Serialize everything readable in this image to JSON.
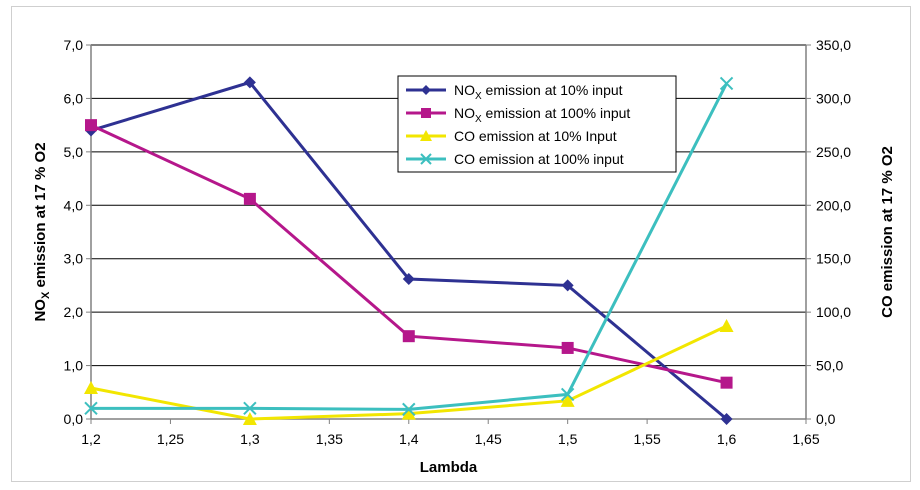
{
  "chart_data": {
    "type": "line",
    "xlabel": "Lambda",
    "ylabel_left": {
      "main": "NO",
      "sub": "X",
      "rest": " emission at 17 % O2"
    },
    "ylabel_right": "CO emission at 17 % O2",
    "xlim": [
      1.2,
      1.65
    ],
    "x_ticks": [
      "1,2",
      "1,25",
      "1,3",
      "1,35",
      "1,4",
      "1,45",
      "1,5",
      "1,55",
      "1,6",
      "1,65"
    ],
    "ylim_left": [
      0,
      7
    ],
    "y_ticks_left": [
      "0,0",
      "1,0",
      "2,0",
      "3,0",
      "4,0",
      "5,0",
      "6,0",
      "7,0"
    ],
    "ylim_right": [
      0,
      350
    ],
    "y_ticks_right": [
      "0,0",
      "50,0",
      "100,0",
      "150,0",
      "200,0",
      "250,0",
      "300,0",
      "350,0"
    ],
    "grid": true,
    "legend_position": "top-center",
    "series": [
      {
        "name": {
          "main": "NO",
          "sub": "X",
          "rest": " emission at 10% input"
        },
        "axis": "left",
        "color": "#2e3192",
        "marker": "diamond",
        "x": [
          1.2,
          1.3,
          1.4,
          1.5,
          1.6
        ],
        "y": [
          5.4,
          6.3,
          2.62,
          2.5,
          0.0
        ]
      },
      {
        "name": {
          "main": "NO",
          "sub": "X",
          "rest": " emission at 100% input"
        },
        "axis": "left",
        "color": "#b5178b",
        "marker": "square",
        "x": [
          1.2,
          1.3,
          1.4,
          1.5,
          1.6
        ],
        "y": [
          5.5,
          4.12,
          1.55,
          1.33,
          0.68
        ]
      },
      {
        "name": {
          "main": "CO emission at 10% Input",
          "sub": "",
          "rest": ""
        },
        "axis": "right",
        "color": "#f2e600",
        "marker": "triangle",
        "x": [
          1.2,
          1.3,
          1.4,
          1.5,
          1.6
        ],
        "y": [
          29,
          0,
          5,
          17,
          87
        ]
      },
      {
        "name": {
          "main": "CO emission at 100% input",
          "sub": "",
          "rest": ""
        },
        "axis": "right",
        "color": "#3cbfbf",
        "marker": "x",
        "x": [
          1.2,
          1.3,
          1.4,
          1.5,
          1.6
        ],
        "y": [
          10,
          10,
          9,
          23,
          314
        ]
      }
    ]
  }
}
